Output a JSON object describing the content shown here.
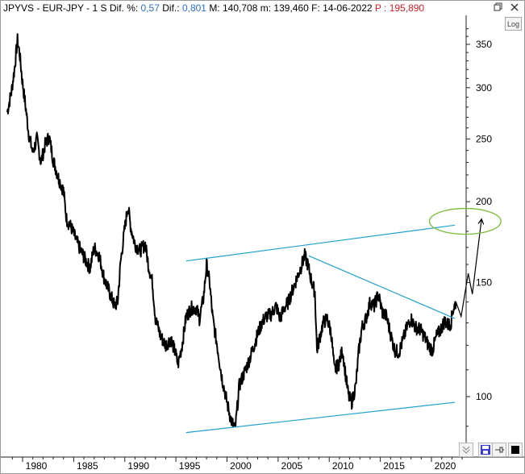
{
  "header": {
    "symbol": "JPYVS - EUR-JPY",
    "period": "1 S",
    "dif_pct_label": "Dif. %:",
    "dif_pct_value": "0,57",
    "dif_label": "Dif.:",
    "dif_value": "0,801",
    "max_label": "M:",
    "max_value": "140,708",
    "min_label": "m:",
    "min_value": "139,460",
    "date_label": "F:",
    "date_value": "14-06-2022",
    "price_label": "P :",
    "price_value": "195,890",
    "accent_blue": "#2a6fd6",
    "accent_red": "#e0191f"
  },
  "toolbar": {
    "log_label": "Log",
    "scroll_icon": "double-chevron-down-icon",
    "save_icon": "save-icon",
    "pin_icon": "pin-icon",
    "color_icon": "black-square-icon"
  },
  "chart_data": {
    "type": "line",
    "title": "",
    "xlabel": "",
    "ylabel": "",
    "y_scale": "log",
    "xlim": [
      1978.4,
      2024.0
    ],
    "ylim": [
      80,
      380
    ],
    "x_ticks": [
      1980,
      1985,
      1990,
      1995,
      2000,
      2005,
      2010,
      2015,
      2020
    ],
    "y_ticks": [
      100,
      150,
      200,
      250,
      300,
      350
    ],
    "grid": false,
    "series": [
      {
        "color": "#000000",
        "points": [
          [
            1978.5,
            275
          ],
          [
            1978.9,
            295
          ],
          [
            1979.2,
            320
          ],
          [
            1979.5,
            355
          ],
          [
            1979.7,
            340
          ],
          [
            1980.0,
            305
          ],
          [
            1980.3,
            280
          ],
          [
            1980.6,
            255
          ],
          [
            1981.0,
            238
          ],
          [
            1981.4,
            250
          ],
          [
            1981.8,
            230
          ],
          [
            1982.2,
            245
          ],
          [
            1982.6,
            252
          ],
          [
            1983.0,
            232
          ],
          [
            1983.5,
            218
          ],
          [
            1984.0,
            208
          ],
          [
            1984.3,
            188
          ],
          [
            1984.8,
            182
          ],
          [
            1985.2,
            175
          ],
          [
            1985.7,
            168
          ],
          [
            1986.2,
            162
          ],
          [
            1986.6,
            158
          ],
          [
            1987.0,
            170
          ],
          [
            1987.5,
            165
          ],
          [
            1988.0,
            152
          ],
          [
            1988.5,
            145
          ],
          [
            1989.0,
            138
          ],
          [
            1989.3,
            140
          ],
          [
            1989.6,
            162
          ],
          [
            1990.0,
            182
          ],
          [
            1990.3,
            197
          ],
          [
            1990.6,
            182
          ],
          [
            1991.0,
            172
          ],
          [
            1991.5,
            168
          ],
          [
            1992.0,
            172
          ],
          [
            1992.3,
            160
          ],
          [
            1992.7,
            150
          ],
          [
            1993.0,
            132
          ],
          [
            1993.5,
            124
          ],
          [
            1994.0,
            120
          ],
          [
            1994.5,
            123
          ],
          [
            1995.0,
            116
          ],
          [
            1995.2,
            112
          ],
          [
            1995.6,
            120
          ],
          [
            1996.0,
            133
          ],
          [
            1996.5,
            137
          ],
          [
            1997.0,
            137
          ],
          [
            1997.3,
            132
          ],
          [
            1997.7,
            142
          ],
          [
            1998.0,
            160
          ],
          [
            1998.3,
            150
          ],
          [
            1998.6,
            132
          ],
          [
            1999.0,
            121
          ],
          [
            1999.5,
            107
          ],
          [
            2000.0,
            98
          ],
          [
            2000.4,
            92
          ],
          [
            2000.8,
            89
          ],
          [
            2001.2,
            104
          ],
          [
            2001.6,
            108
          ],
          [
            2002.0,
            112
          ],
          [
            2002.5,
            118
          ],
          [
            2003.0,
            125
          ],
          [
            2003.4,
            130
          ],
          [
            2003.8,
            133
          ],
          [
            2004.3,
            134
          ],
          [
            2004.8,
            138
          ],
          [
            2005.2,
            132
          ],
          [
            2005.6,
            137
          ],
          [
            2006.0,
            140
          ],
          [
            2006.4,
            146
          ],
          [
            2006.8,
            152
          ],
          [
            2007.2,
            158
          ],
          [
            2007.6,
            165
          ],
          [
            2007.9,
            160
          ],
          [
            2008.3,
            150
          ],
          [
            2008.6,
            145
          ],
          [
            2008.8,
            118
          ],
          [
            2009.0,
            122
          ],
          [
            2009.4,
            130
          ],
          [
            2009.8,
            132
          ],
          [
            2010.2,
            125
          ],
          [
            2010.5,
            110
          ],
          [
            2010.9,
            112
          ],
          [
            2011.3,
            118
          ],
          [
            2011.6,
            108
          ],
          [
            2011.9,
            100
          ],
          [
            2012.2,
            98
          ],
          [
            2012.6,
            104
          ],
          [
            2012.9,
            118
          ],
          [
            2013.2,
            128
          ],
          [
            2013.6,
            132
          ],
          [
            2014.0,
            140
          ],
          [
            2014.4,
            138
          ],
          [
            2014.8,
            144
          ],
          [
            2015.2,
            135
          ],
          [
            2015.6,
            133
          ],
          [
            2016.0,
            125
          ],
          [
            2016.4,
            118
          ],
          [
            2016.8,
            117
          ],
          [
            2017.2,
            122
          ],
          [
            2017.6,
            128
          ],
          [
            2018.0,
            132
          ],
          [
            2018.4,
            128
          ],
          [
            2018.9,
            127
          ],
          [
            2019.3,
            124
          ],
          [
            2019.7,
            120
          ],
          [
            2020.1,
            118
          ],
          [
            2020.5,
            124
          ],
          [
            2020.9,
            127
          ],
          [
            2021.3,
            131
          ],
          [
            2021.6,
            129
          ],
          [
            2021.9,
            130
          ],
          [
            2022.1,
            136
          ],
          [
            2022.4,
            140
          ]
        ]
      }
    ],
    "projection": {
      "color": "#000000",
      "points": [
        [
          2022.4,
          140
        ],
        [
          2022.9,
          133
        ],
        [
          2023.6,
          155
        ],
        [
          2024.0,
          144
        ],
        [
          2024.9,
          188
        ]
      ]
    },
    "trendlines": [
      {
        "name": "upper-channel",
        "color": "#1ea0d0",
        "start": [
          1996.0,
          162
        ],
        "end": [
          2022.3,
          184
        ]
      },
      {
        "name": "lower-channel",
        "color": "#1ea0d0",
        "start": [
          1996.0,
          88
        ],
        "end": [
          2022.3,
          98
        ]
      },
      {
        "name": "falling-line",
        "color": "#1ea0d0",
        "start": [
          2008.0,
          165
        ],
        "end": [
          2022.3,
          132
        ]
      }
    ],
    "highlight_ellipse": {
      "color": "#7dbb3a",
      "center": [
        2023.3,
        186.5
      ],
      "rx_years": 3.5,
      "ry_ratio": 1.047
    }
  }
}
